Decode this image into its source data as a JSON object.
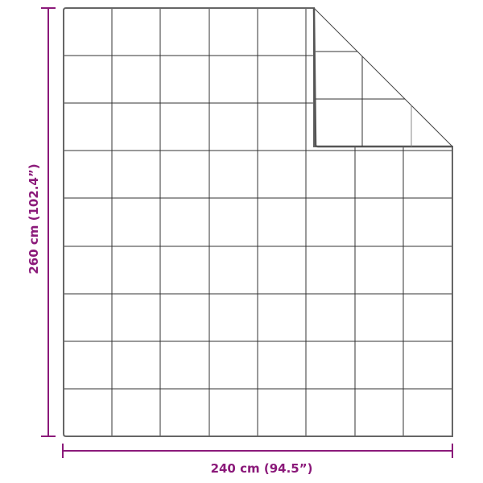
{
  "dimensions": {
    "height_label": "260 cm (102.4”)",
    "width_label": "240 cm (94.5”)"
  },
  "colors": {
    "dimension": "#8b1a7a",
    "outline": "#555555",
    "grid": "#333333"
  }
}
